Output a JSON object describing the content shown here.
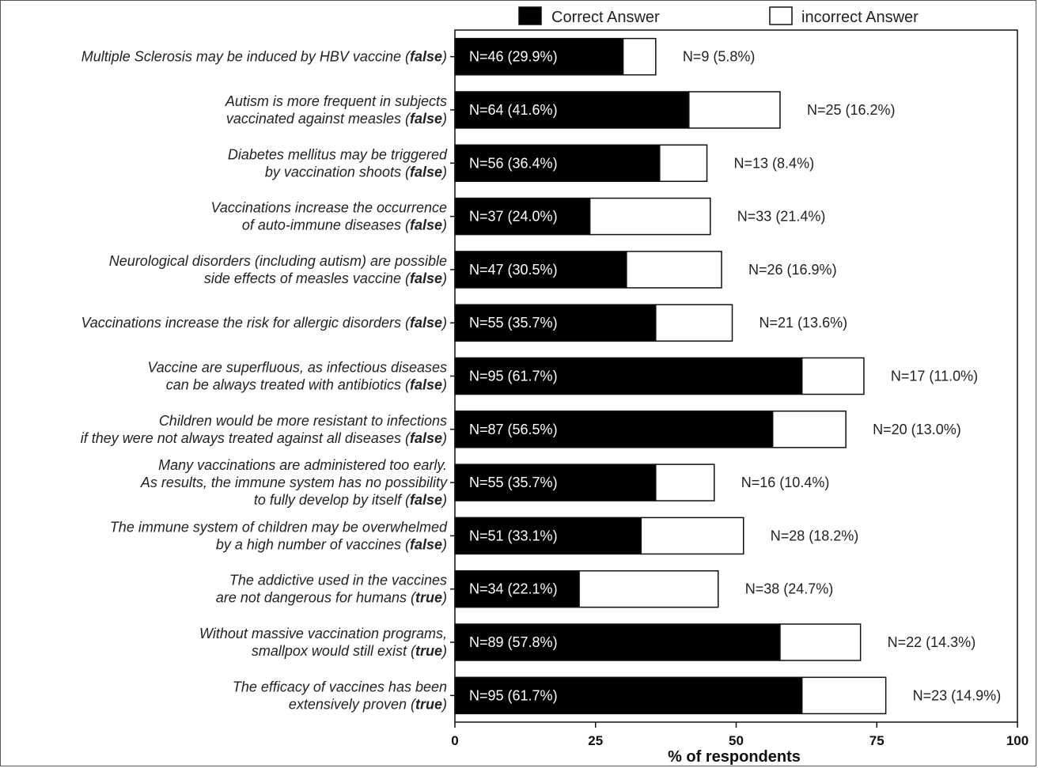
{
  "chart_data": {
    "type": "bar",
    "orientation": "horizontal",
    "stacked": true,
    "title": "",
    "xlabel": "% of respondents",
    "ylabel": "",
    "xlim": [
      0,
      100
    ],
    "xticks": [
      "0",
      "25",
      "50",
      "75",
      "100"
    ],
    "legend": {
      "placement": "top",
      "entries": [
        "Correct Answer",
        "incorrect Answer"
      ]
    },
    "colors": {
      "correct": "#000000",
      "incorrect": "#ffffff",
      "edge": "#111111"
    },
    "categories": [
      {
        "lines": [
          "Multiple Sclerosis may be induced by HBV vaccine"
        ],
        "tag": "false"
      },
      {
        "lines": [
          "Autism is more frequent in subjects",
          "vaccinated against measles"
        ],
        "tag": "false"
      },
      {
        "lines": [
          "Diabetes mellitus may be triggered",
          "by vaccination shoots"
        ],
        "tag": "false"
      },
      {
        "lines": [
          "Vaccinations increase the occurrence",
          "of auto-immune diseases"
        ],
        "tag": "false"
      },
      {
        "lines": [
          "Neurological disorders (including autism) are possible",
          "side effects of measles vaccine"
        ],
        "tag": "false"
      },
      {
        "lines": [
          "Vaccinations increase the risk for allergic disorders"
        ],
        "tag": "false"
      },
      {
        "lines": [
          "Vaccine are superfluous, as infectious diseases",
          "can be always treated with antibiotics"
        ],
        "tag": "false"
      },
      {
        "lines": [
          "Children would be more resistant to infections",
          "if they were not always treated against all diseases"
        ],
        "tag": "false"
      },
      {
        "lines": [
          "Many vaccinations are administered too early.",
          "As results, the immune system has no possibility",
          "to fully develop by itself"
        ],
        "tag": "false"
      },
      {
        "lines": [
          "The immune system of children may be overwhelmed",
          "by a high number of vaccines"
        ],
        "tag": "false"
      },
      {
        "lines": [
          "The addictive used in the vaccines",
          "are not dangerous for humans"
        ],
        "tag": "true"
      },
      {
        "lines": [
          "Without massive vaccination programs,",
          "smallpox would still exist"
        ],
        "tag": "true"
      },
      {
        "lines": [
          "The efficacy of vaccines has been",
          "extensively proven"
        ],
        "tag": "true"
      }
    ],
    "series": [
      {
        "name": "Correct Answer",
        "values": [
          29.9,
          41.6,
          36.4,
          24.0,
          30.5,
          35.7,
          61.7,
          56.5,
          35.7,
          33.1,
          22.1,
          57.8,
          61.7
        ],
        "labels": [
          "N=46 (29.9%)",
          "N=64 (41.6%)",
          "N=56 (36.4%)",
          "N=37 (24.0%)",
          "N=47 (30.5%)",
          "N=55 (35.7%)",
          "N=95 (61.7%)",
          "N=87 (56.5%)",
          "N=55 (35.7%)",
          "N=51 (33.1%)",
          "N=34 (22.1%)",
          "N=89 (57.8%)",
          "N=95 (61.7%)"
        ]
      },
      {
        "name": "incorrect Answer",
        "values": [
          5.8,
          16.2,
          8.4,
          21.4,
          16.9,
          13.6,
          11.0,
          13.0,
          10.4,
          18.2,
          24.7,
          14.3,
          14.9
        ],
        "labels": [
          "N=9 (5.8%)",
          "N=25 (16.2%)",
          "N=13 (8.4%)",
          "N=33 (21.4%)",
          "N=26 (16.9%)",
          "N=21 (13.6%)",
          "N=17 (11.0%)",
          "N=20 (13.0%)",
          "N=16 (10.4%)",
          "N=28 (18.2%)",
          "N=38 (24.7%)",
          "N=22 (14.3%)",
          "N=23 (14.9%)"
        ]
      }
    ]
  }
}
